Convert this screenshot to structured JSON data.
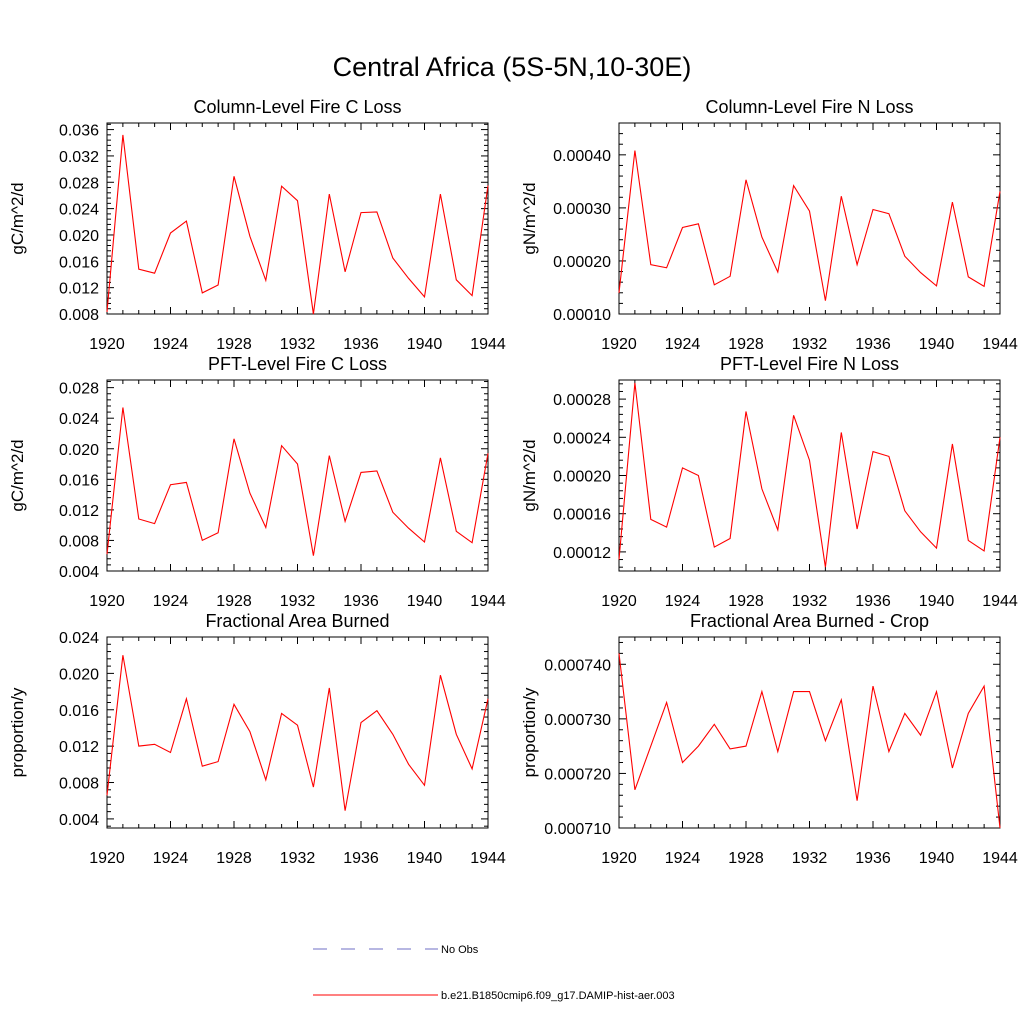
{
  "figure": {
    "title": "Central Africa (5S-5N,10-30E)",
    "line_color": "#ff0000",
    "obs_color": "#6f6fc6"
  },
  "legend": [
    {
      "label": "No Obs",
      "style": "dashed",
      "color": "#6f6fc6"
    },
    {
      "label": "b.e21.B1850cmip6.f09_g17.DAMIP-hist-aer.003",
      "style": "solid",
      "color": "#ff0000"
    }
  ],
  "chart_data": [
    {
      "type": "line",
      "title": "Column-Level Fire C Loss",
      "xlabel": "",
      "ylabel": "gC/m^2/d",
      "xlim": [
        1920,
        1944
      ],
      "ylim": [
        0.008,
        0.037
      ],
      "xticks": [
        "1920",
        "1924",
        "1928",
        "1932",
        "1936",
        "1940",
        "1944"
      ],
      "yticks": [
        "0.008",
        "0.012",
        "0.016",
        "0.020",
        "0.024",
        "0.028",
        "0.032",
        "0.036"
      ],
      "x": [
        1920,
        1921,
        1922,
        1923,
        1924,
        1925,
        1926,
        1927,
        1928,
        1929,
        1930,
        1931,
        1932,
        1933,
        1934,
        1935,
        1936,
        1937,
        1938,
        1939,
        1940,
        1941,
        1942,
        1943,
        1944
      ],
      "series": [
        {
          "name": "b.e21.B1850cmip6.f09_g17.DAMIP-hist-aer.003",
          "values": [
            0.0083,
            0.0352,
            0.0148,
            0.0142,
            0.0203,
            0.0221,
            0.0112,
            0.0124,
            0.0289,
            0.0198,
            0.0131,
            0.0274,
            0.0252,
            0.008,
            0.0262,
            0.0144,
            0.0234,
            0.0235,
            0.0165,
            0.0134,
            0.0106,
            0.0262,
            0.0132,
            0.0108,
            0.0275
          ]
        }
      ]
    },
    {
      "type": "line",
      "title": "Column-Level Fire N Loss",
      "xlabel": "",
      "ylabel": "gN/m^2/d",
      "xlim": [
        1920,
        1944
      ],
      "ylim": [
        0.0001,
        0.00046
      ],
      "xticks": [
        "1920",
        "1924",
        "1928",
        "1932",
        "1936",
        "1940",
        "1944"
      ],
      "yticks": [
        "0.00010",
        "0.00020",
        "0.00030",
        "0.00040"
      ],
      "x": [
        1920,
        1921,
        1922,
        1923,
        1924,
        1925,
        1926,
        1927,
        1928,
        1929,
        1930,
        1931,
        1932,
        1933,
        1934,
        1935,
        1936,
        1937,
        1938,
        1939,
        1940,
        1941,
        1942,
        1943,
        1944
      ],
      "series": [
        {
          "name": "b.e21.B1850cmip6.f09_g17.DAMIP-hist-aer.003",
          "values": [
            0.00014,
            0.000408,
            0.000193,
            0.000187,
            0.000263,
            0.00027,
            0.000155,
            0.000171,
            0.000353,
            0.000245,
            0.000179,
            0.000342,
            0.000294,
            0.000125,
            0.000322,
            0.000193,
            0.000297,
            0.000289,
            0.000209,
            0.000178,
            0.000153,
            0.000311,
            0.00017,
            0.000152,
            0.000331
          ]
        }
      ]
    },
    {
      "type": "line",
      "title": "PFT-Level Fire C Loss",
      "xlabel": "",
      "ylabel": "gC/m^2/d",
      "xlim": [
        1920,
        1944
      ],
      "ylim": [
        0.004,
        0.029
      ],
      "xticks": [
        "1920",
        "1924",
        "1928",
        "1932",
        "1936",
        "1940",
        "1944"
      ],
      "yticks": [
        "0.004",
        "0.008",
        "0.012",
        "0.016",
        "0.020",
        "0.024",
        "0.028"
      ],
      "x": [
        1920,
        1921,
        1922,
        1923,
        1924,
        1925,
        1926,
        1927,
        1928,
        1929,
        1930,
        1931,
        1932,
        1933,
        1934,
        1935,
        1936,
        1937,
        1938,
        1939,
        1940,
        1941,
        1942,
        1943,
        1944
      ],
      "series": [
        {
          "name": "b.e21.B1850cmip6.f09_g17.DAMIP-hist-aer.003",
          "values": [
            0.0062,
            0.0254,
            0.0108,
            0.0102,
            0.0153,
            0.0156,
            0.008,
            0.009,
            0.0213,
            0.0142,
            0.0097,
            0.0204,
            0.018,
            0.006,
            0.0191,
            0.0105,
            0.0169,
            0.0171,
            0.0117,
            0.0096,
            0.0078,
            0.0188,
            0.0092,
            0.0077,
            0.0194
          ]
        }
      ]
    },
    {
      "type": "line",
      "title": "PFT-Level Fire N Loss",
      "xlabel": "",
      "ylabel": "gN/m^2/d",
      "xlim": [
        1920,
        1944
      ],
      "ylim": [
        0.0001,
        0.0003
      ],
      "xticks": [
        "1920",
        "1924",
        "1928",
        "1932",
        "1936",
        "1940",
        "1944"
      ],
      "yticks": [
        "0.00012",
        "0.00016",
        "0.00020",
        "0.00024",
        "0.00028"
      ],
      "x": [
        1920,
        1921,
        1922,
        1923,
        1924,
        1925,
        1926,
        1927,
        1928,
        1929,
        1930,
        1931,
        1932,
        1933,
        1934,
        1935,
        1936,
        1937,
        1938,
        1939,
        1940,
        1941,
        1942,
        1943,
        1944
      ],
      "series": [
        {
          "name": "b.e21.B1850cmip6.f09_g17.DAMIP-hist-aer.003",
          "values": [
            0.000112,
            0.000297,
            0.000154,
            0.000146,
            0.000208,
            0.0002,
            0.000125,
            0.000134,
            0.000267,
            0.000186,
            0.000143,
            0.000263,
            0.000216,
            0.000104,
            0.000245,
            0.000144,
            0.000225,
            0.00022,
            0.000163,
            0.000141,
            0.000124,
            0.000233,
            0.000132,
            0.000121,
            0.00024
          ]
        }
      ]
    },
    {
      "type": "line",
      "title": "Fractional Area Burned",
      "xlabel": "",
      "ylabel": "proportion/y",
      "xlim": [
        1920,
        1944
      ],
      "ylim": [
        0.003,
        0.024
      ],
      "xticks": [
        "1920",
        "1924",
        "1928",
        "1932",
        "1936",
        "1940",
        "1944"
      ],
      "yticks": [
        "0.004",
        "0.008",
        "0.012",
        "0.016",
        "0.020",
        "0.024"
      ],
      "x": [
        1920,
        1921,
        1922,
        1923,
        1924,
        1925,
        1926,
        1927,
        1928,
        1929,
        1930,
        1931,
        1932,
        1933,
        1934,
        1935,
        1936,
        1937,
        1938,
        1939,
        1940,
        1941,
        1942,
        1943,
        1944
      ],
      "series": [
        {
          "name": "b.e21.B1850cmip6.f09_g17.DAMIP-hist-aer.003",
          "values": [
            0.0066,
            0.022,
            0.012,
            0.0122,
            0.0113,
            0.0172,
            0.0098,
            0.0103,
            0.0166,
            0.0136,
            0.0083,
            0.0156,
            0.0143,
            0.0075,
            0.0184,
            0.0049,
            0.0146,
            0.0159,
            0.0133,
            0.01,
            0.0077,
            0.0198,
            0.0133,
            0.0095,
            0.0172
          ]
        }
      ]
    },
    {
      "type": "line",
      "title": "Fractional Area Burned - Crop",
      "xlabel": "",
      "ylabel": "proportion/y",
      "xlim": [
        1920,
        1944
      ],
      "ylim": [
        0.00071,
        0.000745
      ],
      "xticks": [
        "1920",
        "1924",
        "1928",
        "1932",
        "1936",
        "1940",
        "1944"
      ],
      "yticks": [
        "0.000710",
        "0.000720",
        "0.000730",
        "0.000740"
      ],
      "x": [
        1920,
        1921,
        1922,
        1923,
        1924,
        1925,
        1926,
        1927,
        1928,
        1929,
        1930,
        1931,
        1932,
        1933,
        1934,
        1935,
        1936,
        1937,
        1938,
        1939,
        1940,
        1941,
        1942,
        1943,
        1944
      ],
      "series": [
        {
          "name": "b.e21.B1850cmip6.f09_g17.DAMIP-hist-aer.003",
          "values": [
            0.000742,
            0.000717,
            0.000725,
            0.000733,
            0.000722,
            0.000725,
            0.000729,
            0.0007245,
            0.000725,
            0.000735,
            0.000724,
            0.000735,
            0.000735,
            0.000726,
            0.0007335,
            0.000715,
            0.000736,
            0.000724,
            0.000731,
            0.000727,
            0.000735,
            0.000721,
            0.000731,
            0.000736,
            0.00071
          ]
        }
      ]
    }
  ]
}
